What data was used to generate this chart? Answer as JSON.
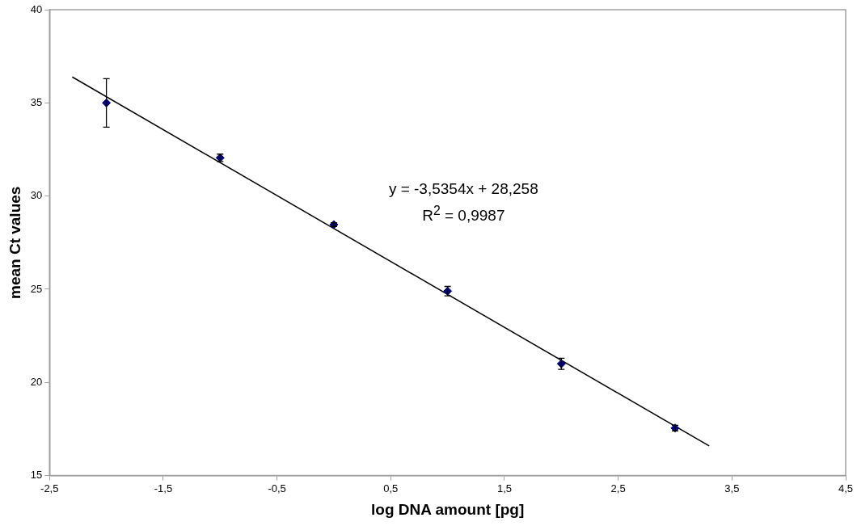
{
  "chart_data": {
    "type": "scatter",
    "xlabel": "log DNA amount [pg]",
    "ylabel": "mean Ct values",
    "x": [
      -2,
      -1,
      0,
      1,
      2,
      3
    ],
    "series": [
      {
        "type": "scatter",
        "color": "#000080",
        "marker": "diamond",
        "values": [
          35.0,
          32.05,
          28.47,
          24.9,
          21.0,
          17.55
        ],
        "errors": [
          1.3,
          0.2,
          0.1,
          0.25,
          0.3,
          0.15
        ]
      },
      {
        "type": "line",
        "color": "#000000",
        "marker": "none",
        "x": [
          -2.3,
          3.3
        ],
        "values": [
          36.39,
          16.59
        ]
      }
    ],
    "xlim": [
      -2.5,
      4.5
    ],
    "xticks": [
      {
        "value": -2.5,
        "label": "-2,5"
      },
      {
        "value": -1.5,
        "label": "-1,5"
      },
      {
        "value": -0.5,
        "label": "-0,5"
      },
      {
        "value": 0.5,
        "label": "0,5"
      },
      {
        "value": 1.5,
        "label": "1,5"
      },
      {
        "value": 2.5,
        "label": "2,5"
      },
      {
        "value": 3.5,
        "label": "3,5"
      },
      {
        "value": 4.5,
        "label": "4,5"
      }
    ],
    "ylim": [
      15,
      40
    ],
    "yticks": [
      15,
      20,
      25,
      30,
      35,
      40
    ],
    "grid": false,
    "legend": false,
    "annotations": [
      "y = -3,5354x + 28,258",
      "R$^{2}$ = 0,9987"
    ]
  }
}
